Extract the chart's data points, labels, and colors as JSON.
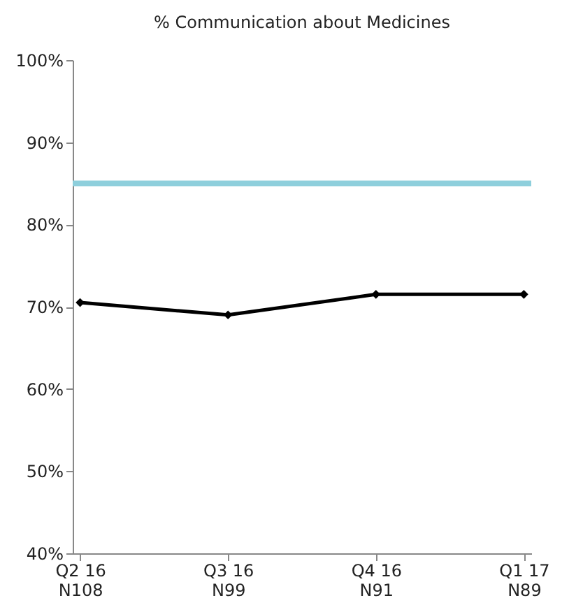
{
  "chart_data": {
    "type": "line",
    "title": "% Communication about Medicines",
    "categories": [
      "Q2 16\nN108",
      "Q3 16\nN99",
      "Q4 16\nN91",
      "Q1 17\nN89"
    ],
    "series": [
      {
        "color": "#000000",
        "values": [
          70.5,
          69,
          71.5,
          71.5
        ]
      }
    ],
    "marker": "diamond",
    "line_style": "solid",
    "grid": false,
    "ylim": [
      40,
      100
    ],
    "yticks": [
      {
        "value": 40,
        "label": "40%"
      },
      {
        "value": 50,
        "label": "50%"
      },
      {
        "value": 60,
        "label": "60%"
      },
      {
        "value": 70,
        "label": "70%"
      },
      {
        "value": 80,
        "label": "80%"
      },
      {
        "value": 90,
        "label": "90%"
      },
      {
        "value": 100,
        "label": "100%"
      }
    ],
    "ref_lines": [
      {
        "axis": "y",
        "value": 85,
        "color": "#8ecfdc",
        "line_style": "solid"
      }
    ]
  }
}
